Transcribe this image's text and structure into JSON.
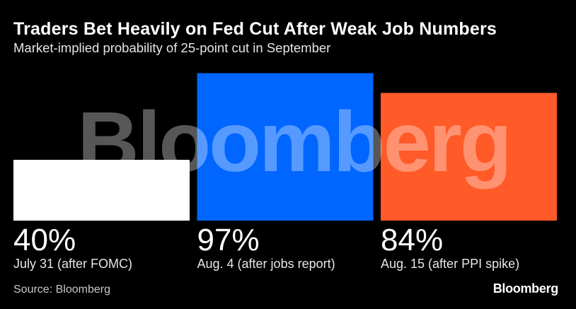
{
  "title": "Traders Bet Heavily on Fed Cut After Weak Job Numbers",
  "subtitle": "Market-implied probability of 25-point cut in September",
  "source": "Source: Bloomberg",
  "logo": "Bloomberg",
  "watermark": "Bloomberg",
  "chart_data": {
    "type": "bar",
    "title": "Traders Bet Heavily on Fed Cut After Weak Job Numbers",
    "subtitle": "Market-implied probability of 25-point cut in September",
    "categories": [
      "July 31 (after FOMC)",
      "Aug. 4 (after jobs report)",
      "Aug. 15 (after PPI spike)"
    ],
    "values": [
      40,
      97,
      84
    ],
    "value_labels": [
      "40%",
      "97%",
      "84%"
    ],
    "unit": "%",
    "colors": [
      "#ffffff",
      "#0066ff",
      "#ff5a28"
    ],
    "ylim": [
      0,
      100
    ],
    "xlabel": "",
    "ylabel": "",
    "grid": false,
    "legend": "none"
  }
}
